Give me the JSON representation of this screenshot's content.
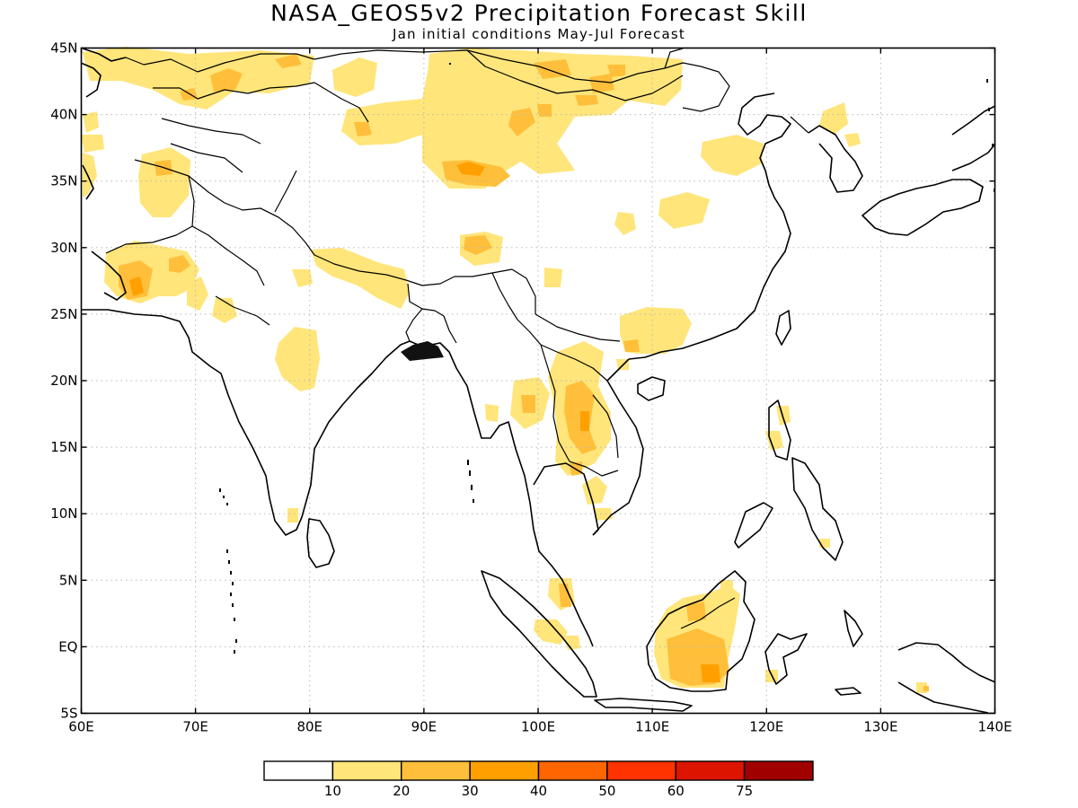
{
  "title": "NASA_GEOS5v2 Precipitation Forecast Skill",
  "subtitle": "Jan initial conditions   May-Jul Forecast",
  "lon_ticks": [
    "60E",
    "70E",
    "80E",
    "90E",
    "100E",
    "110E",
    "120E",
    "130E",
    "140E"
  ],
  "lat_ticks": [
    "45N",
    "40N",
    "35N",
    "30N",
    "25N",
    "20N",
    "15N",
    "10N",
    "5N",
    "EQ",
    "5S"
  ],
  "colorbar": {
    "colors": [
      "#ffffff",
      "#ffe57a",
      "#ffbf3a",
      "#ffa000",
      "#ff6600",
      "#ff3300",
      "#dc1400",
      "#a00000"
    ],
    "labels": [
      "10",
      "20",
      "30",
      "40",
      "50",
      "60",
      "75"
    ]
  },
  "map": {
    "extent": {
      "lon": [
        60,
        140
      ],
      "lat": [
        -5,
        45
      ]
    }
  }
}
